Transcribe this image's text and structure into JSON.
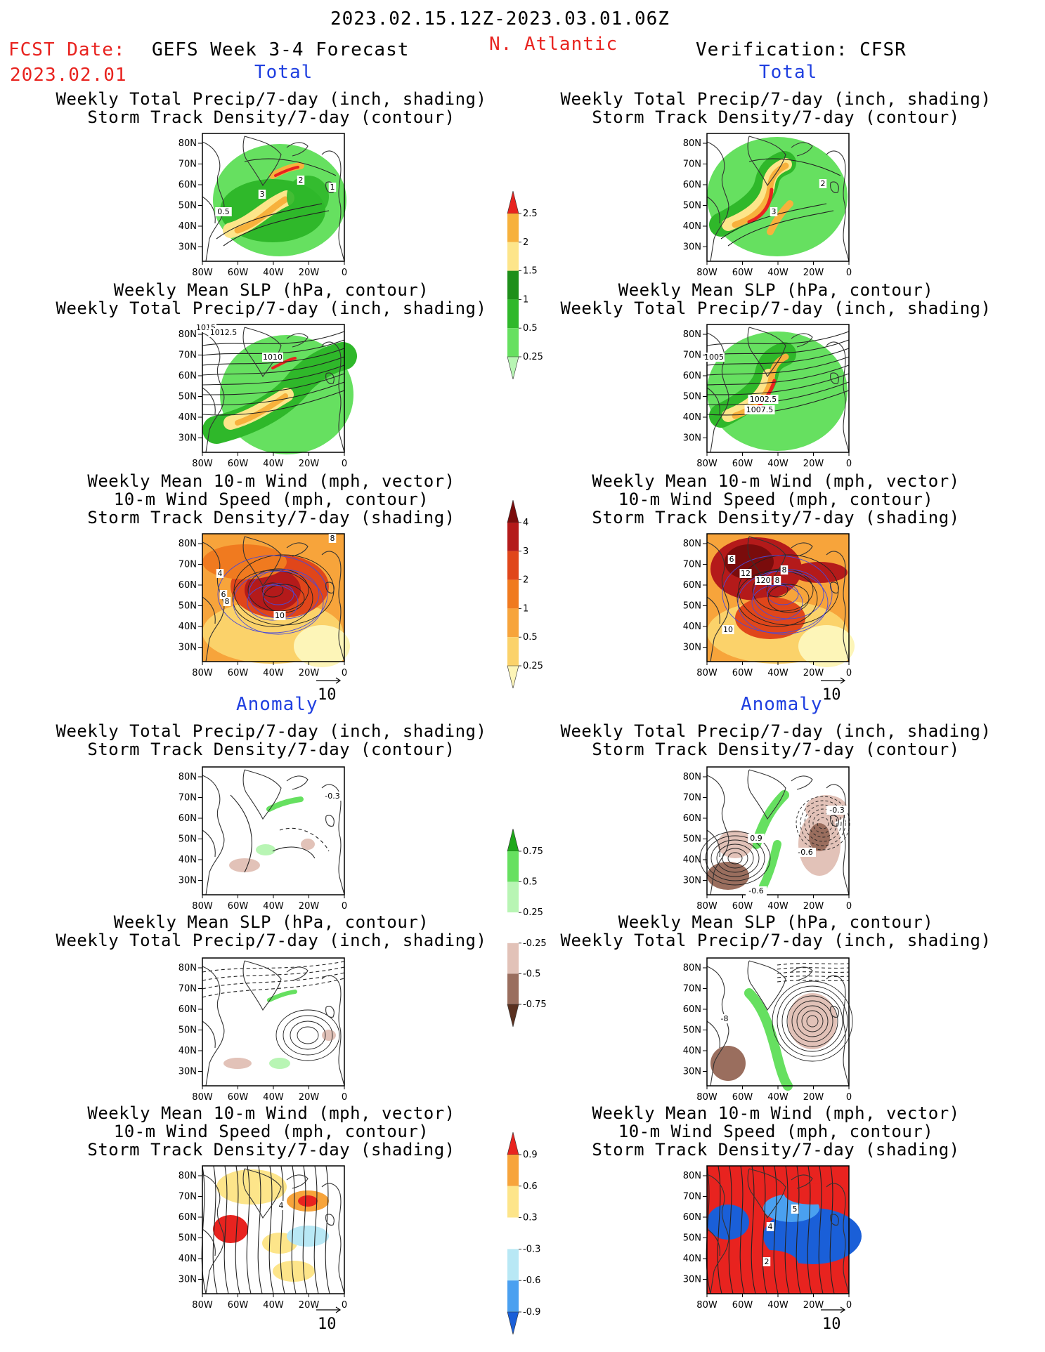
{
  "header": {
    "period": "2023.02.15.12Z-2023.03.01.06Z",
    "fcst_label": "FCST Date:",
    "fcst_date": "2023.02.01",
    "model": "GEFS Week 3-4 Forecast",
    "region": "N. Atlantic",
    "verification": "Verification: CFSR"
  },
  "sections": {
    "total": "Total",
    "anomaly": "Anomaly"
  },
  "titles": {
    "precip_std": [
      "Weekly Total Precip/7-day (inch, shading)",
      "Storm Track Density/7-day (contour)"
    ],
    "slp_precip": [
      "Weekly Mean SLP (hPa, contour)",
      "Weekly Total Precip/7-day (inch, shading)"
    ],
    "wind_std": [
      "Weekly Mean 10-m Wind (mph, vector)",
      "10-m Wind Speed (mph, contour)",
      "Storm Track Density/7-day (shading)"
    ]
  },
  "vector_ref": "10",
  "colors": {
    "precip_total": [
      "#b8f5b4",
      "#66e060",
      "#2fb82a",
      "#1e8f1a",
      "#fde58a",
      "#f7b13c",
      "#e8231f"
    ],
    "std_total": [
      "#fdf5b8",
      "#fbd26a",
      "#f7a43b",
      "#f07a1f",
      "#e0461a",
      "#b41a1a",
      "#7a0c0c"
    ],
    "precip_anom": [
      "#5a3120",
      "#9a6e5e",
      "#e2c2b8",
      "#ffffff",
      "#b8f5b4",
      "#66e060",
      "#1ea81a"
    ],
    "std_anom": [
      "#1a5fd8",
      "#4aa0f0",
      "#b8e8f5",
      "#ffffff",
      "#fde58a",
      "#f7a43b",
      "#e8231f"
    ]
  },
  "chart_data": [
    {
      "type": "heatmap",
      "name": "fcst-total-precip",
      "title": "Weekly Total Precip/7-day (inch, shading)",
      "subtitle": "Storm Track Density/7-day (contour)",
      "x_ticks": [
        "80W",
        "60W",
        "40W",
        "20W",
        "0"
      ],
      "y_ticks": [
        "80N",
        "70N",
        "60N",
        "50N",
        "40N",
        "30N"
      ],
      "contour_labels": [
        "0.5",
        "3",
        "2",
        "1"
      ]
    },
    {
      "type": "heatmap",
      "name": "fcst-total-slp",
      "title": "Weekly Mean SLP (hPa, contour)",
      "subtitle": "Weekly Total Precip/7-day (inch, shading)",
      "x_ticks": [
        "80W",
        "60W",
        "40W",
        "20W",
        "0"
      ],
      "y_ticks": [
        "80N",
        "70N",
        "60N",
        "50N",
        "40N",
        "30N"
      ],
      "contour_labels": [
        "1015",
        "1012.5",
        "1010"
      ]
    },
    {
      "type": "heatmap",
      "name": "fcst-total-wind",
      "title": "Weekly Mean 10-m Wind (mph, vector)",
      "subtitle": "10-m Wind Speed (mph, contour)",
      "x_ticks": [
        "80W",
        "60W",
        "40W",
        "20W",
        "0"
      ],
      "y_ticks": [
        "80N",
        "70N",
        "60N",
        "50N",
        "40N",
        "30N"
      ],
      "contour_labels": [
        "4",
        "6",
        "8",
        "10",
        "8"
      ]
    },
    {
      "type": "heatmap",
      "name": "fcst-anom-precip",
      "x_ticks": [
        "80W",
        "60W",
        "40W",
        "20W",
        "0"
      ],
      "y_ticks": [
        "80N",
        "70N",
        "60N",
        "50N",
        "40N",
        "30N"
      ],
      "contour_labels": [
        "-0.3"
      ]
    },
    {
      "type": "heatmap",
      "name": "fcst-anom-slp",
      "x_ticks": [
        "80W",
        "60W",
        "40W",
        "20W",
        "0"
      ],
      "y_ticks": [
        "80N",
        "70N",
        "60N",
        "50N",
        "40N",
        "30N"
      ],
      "contour_labels": []
    },
    {
      "type": "heatmap",
      "name": "fcst-anom-wind",
      "x_ticks": [
        "80W",
        "60W",
        "40W",
        "20W",
        "0"
      ],
      "y_ticks": [
        "80N",
        "70N",
        "60N",
        "50N",
        "40N",
        "30N"
      ],
      "contour_labels": [
        "4"
      ]
    },
    {
      "type": "heatmap",
      "name": "ver-total-precip",
      "x_ticks": [
        "80W",
        "60W",
        "40W",
        "20W",
        "0"
      ],
      "y_ticks": [
        "80N",
        "70N",
        "60N",
        "50N",
        "40N",
        "30N"
      ],
      "contour_labels": [
        "2",
        "3"
      ]
    },
    {
      "type": "heatmap",
      "name": "ver-total-slp",
      "x_ticks": [
        "80W",
        "60W",
        "40W",
        "20W",
        "0"
      ],
      "y_ticks": [
        "80N",
        "70N",
        "60N",
        "50N",
        "40N",
        "30N"
      ],
      "contour_labels": [
        "1005",
        "1002.5",
        "1007.5"
      ]
    },
    {
      "type": "heatmap",
      "name": "ver-total-wind",
      "x_ticks": [
        "80W",
        "60W",
        "40W",
        "20W",
        "0"
      ],
      "y_ticks": [
        "80N",
        "70N",
        "60N",
        "50N",
        "40N",
        "30N"
      ],
      "contour_labels": [
        "6",
        "12",
        "8",
        "120",
        "8",
        "10"
      ]
    },
    {
      "type": "heatmap",
      "name": "ver-anom-precip",
      "x_ticks": [
        "80W",
        "60W",
        "40W",
        "20W",
        "0"
      ],
      "y_ticks": [
        "80N",
        "70N",
        "60N",
        "50N",
        "40N",
        "30N"
      ],
      "contour_labels": [
        "-0.3",
        "0.9",
        "-0.6",
        "-0.6"
      ]
    },
    {
      "type": "heatmap",
      "name": "ver-anom-slp",
      "x_ticks": [
        "80W",
        "60W",
        "40W",
        "20W",
        "0"
      ],
      "y_ticks": [
        "80N",
        "70N",
        "60N",
        "50N",
        "40N",
        "30N"
      ],
      "contour_labels": [
        "-8"
      ]
    },
    {
      "type": "heatmap",
      "name": "ver-anom-wind",
      "x_ticks": [
        "80W",
        "60W",
        "40W",
        "20W",
        "0"
      ],
      "y_ticks": [
        "80N",
        "70N",
        "60N",
        "50N",
        "40N",
        "30N"
      ],
      "contour_labels": [
        "5",
        "4",
        "2"
      ]
    }
  ],
  "colorbars": [
    {
      "name": "precip-total",
      "labels": [
        "0.25",
        "0.5",
        "1",
        "1.5",
        "2",
        "2.5"
      ]
    },
    {
      "name": "std-total",
      "labels": [
        "0.25",
        "0.5",
        "1",
        "2",
        "3",
        "4"
      ]
    },
    {
      "name": "precip-anom",
      "labels": [
        "-0.75",
        "-0.5",
        "-0.25",
        "0.25",
        "0.5",
        "0.75"
      ]
    },
    {
      "name": "std-anom",
      "labels": [
        "-0.9",
        "-0.6",
        "-0.3",
        "0.3",
        "0.6",
        "0.9"
      ]
    }
  ]
}
